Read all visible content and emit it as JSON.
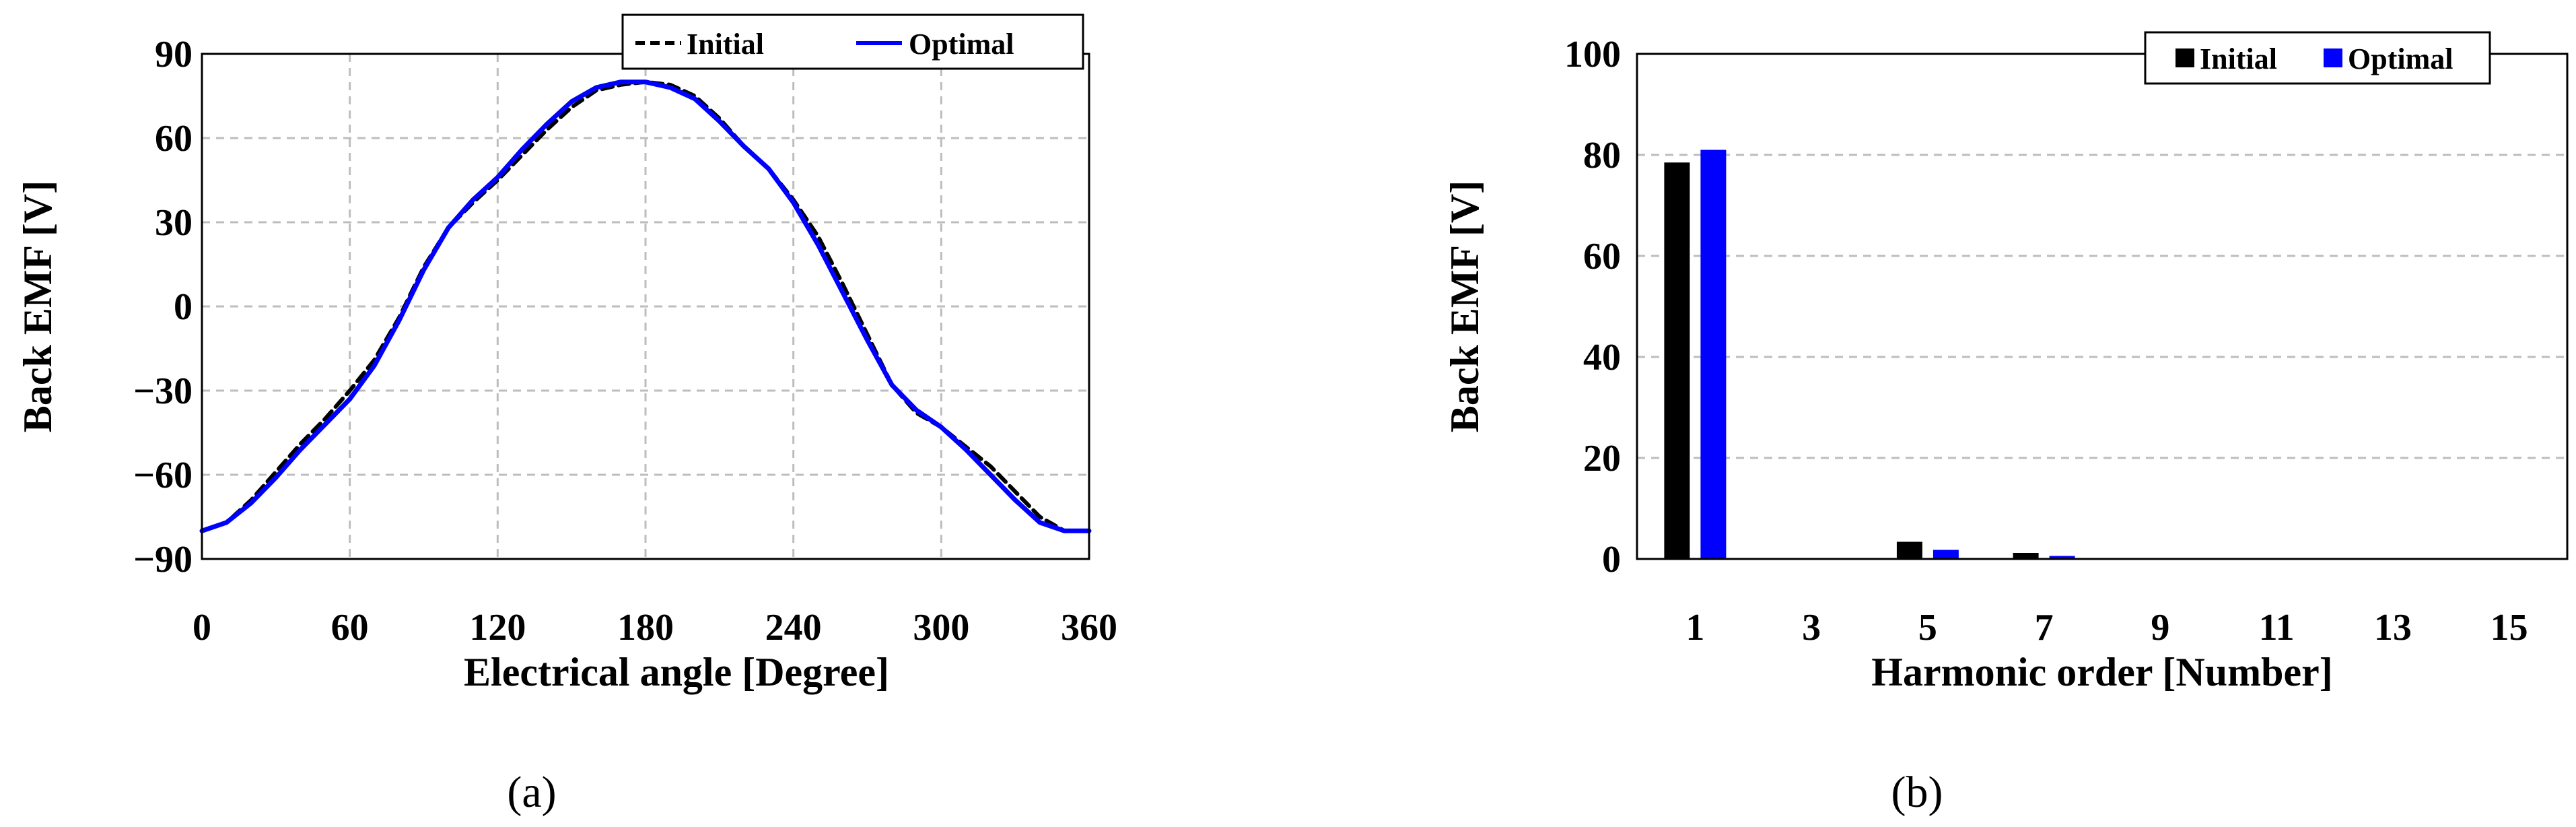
{
  "chart_data": [
    {
      "type": "line",
      "caption": "(a)",
      "xlabel": "Electrical angle [Degree]",
      "ylabel": "Back EMF [V]",
      "xlim": [
        0,
        360
      ],
      "ylim": [
        -90,
        90
      ],
      "xticks": [
        "0",
        "60",
        "120",
        "180",
        "240",
        "300",
        "360"
      ],
      "yticks": [
        "90",
        "60",
        "30",
        "0",
        "−30",
        "−60",
        "−90"
      ],
      "grid": true,
      "legend_position": "top-right",
      "series": [
        {
          "name": "Initial",
          "color": "#000000",
          "style": "dashed",
          "x": [
            0,
            10,
            20,
            30,
            40,
            50,
            60,
            70,
            80,
            90,
            100,
            110,
            120,
            130,
            140,
            150,
            160,
            170,
            180,
            190,
            200,
            210,
            220,
            230,
            240,
            250,
            260,
            270,
            280,
            290,
            300,
            310,
            320,
            330,
            340,
            350,
            360
          ],
          "y": [
            -80,
            -77,
            -69,
            -59,
            -49,
            -40,
            -30,
            -19,
            -4,
            14,
            28,
            37,
            45,
            54,
            63,
            71,
            77,
            79,
            80,
            79,
            75,
            67,
            57,
            49,
            38,
            25,
            8,
            -10,
            -28,
            -38,
            -43,
            -50,
            -57,
            -66,
            -75,
            -80,
            -80
          ]
        },
        {
          "name": "Optimal",
          "color": "#0000ff",
          "style": "solid",
          "x": [
            0,
            10,
            20,
            30,
            40,
            50,
            60,
            70,
            80,
            90,
            100,
            110,
            120,
            130,
            140,
            150,
            160,
            170,
            180,
            190,
            200,
            210,
            220,
            230,
            240,
            250,
            260,
            270,
            280,
            290,
            300,
            310,
            320,
            330,
            340,
            350,
            360
          ],
          "y": [
            -80,
            -77,
            -70,
            -61,
            -51,
            -42,
            -33,
            -21,
            -5,
            13,
            28,
            38,
            46,
            56,
            65,
            73,
            78,
            80,
            80,
            78,
            74,
            66,
            57,
            49,
            37,
            22,
            5,
            -12,
            -28,
            -37,
            -43,
            -51,
            -60,
            -69,
            -77,
            -80,
            -80
          ]
        }
      ]
    },
    {
      "type": "bar",
      "caption": "(b)",
      "xlabel": "Harmonic order [Number]",
      "ylabel": "Back EMF [V]",
      "ylim": [
        0,
        100
      ],
      "categories": [
        "1",
        "3",
        "5",
        "7",
        "9",
        "11",
        "13",
        "15"
      ],
      "yticks": [
        "100",
        "80",
        "60",
        "40",
        "20",
        "0"
      ],
      "grid": true,
      "legend_position": "top-right",
      "series": [
        {
          "name": "Initial",
          "color": "#000000",
          "values": [
            78.5,
            0.1,
            3.4,
            1.2,
            0.1,
            0.1,
            0.1,
            0.1
          ]
        },
        {
          "name": "Optimal",
          "color": "#0000ff",
          "values": [
            81.0,
            0.1,
            1.8,
            0.6,
            0.1,
            0.1,
            0.1,
            0.1
          ]
        }
      ]
    }
  ]
}
